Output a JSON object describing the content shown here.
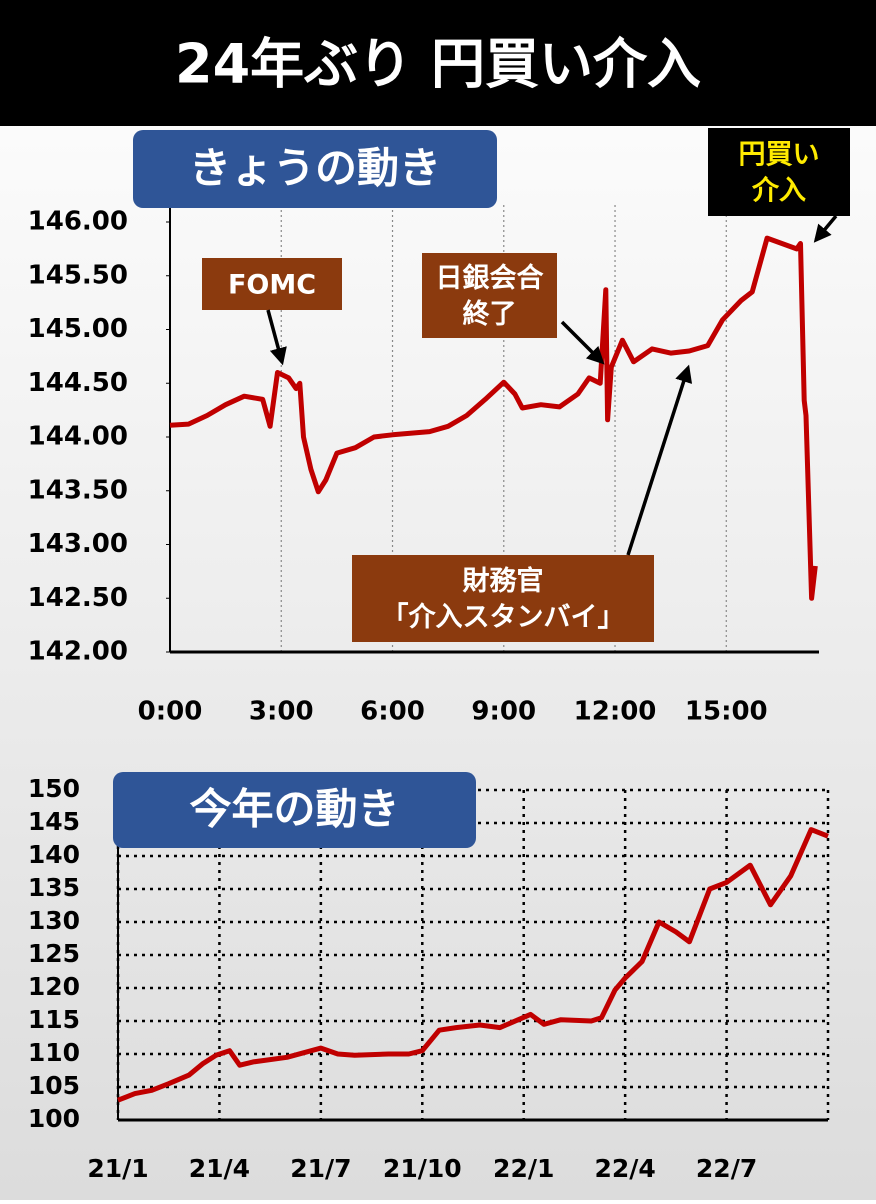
{
  "title": "24年ぶり 円買い介入",
  "chart_data": [
    {
      "type": "line",
      "title": "きょうの動き",
      "color": "#c00000",
      "grid": "x",
      "xlim": [
        0,
        17.5
      ],
      "xticks": [
        {
          "value": 0,
          "label": "0:00"
        },
        {
          "value": 3,
          "label": "3:00"
        },
        {
          "value": 6,
          "label": "6:00"
        },
        {
          "value": 9,
          "label": "9:00"
        },
        {
          "value": 12,
          "label": "12:00"
        },
        {
          "value": 15,
          "label": "15:00"
        }
      ],
      "ylim": [
        142,
        146
      ],
      "yticks": [
        {
          "value": 142,
          "label": "142.00"
        },
        {
          "value": 142.5,
          "label": "142.50"
        },
        {
          "value": 143,
          "label": "143.00"
        },
        {
          "value": 143.5,
          "label": "143.50"
        },
        {
          "value": 144,
          "label": "144.00"
        },
        {
          "value": 144.5,
          "label": "144.50"
        },
        {
          "value": 145,
          "label": "145.00"
        },
        {
          "value": 145.5,
          "label": "145.50"
        },
        {
          "value": 146,
          "label": "146.00"
        }
      ],
      "x": [
        0,
        0.5,
        1,
        1.5,
        2,
        2.5,
        2.7,
        2.9,
        3.2,
        3.4,
        3.5,
        3.6,
        3.8,
        4.0,
        4.2,
        4.5,
        5,
        5.5,
        6,
        7,
        7.5,
        8,
        8.5,
        9,
        9.3,
        9.5,
        10,
        10.5,
        11,
        11.3,
        11.6,
        11.75,
        11.8,
        11.9,
        12.2,
        12.5,
        13,
        13.5,
        14,
        14.5,
        14.9,
        15.4,
        15.7,
        16.1,
        16.5,
        16.9,
        17.0,
        17.1,
        17.15,
        17.3,
        17.4
      ],
      "values": [
        144.11,
        144.12,
        144.2,
        144.3,
        144.38,
        144.35,
        144.1,
        144.6,
        144.55,
        144.45,
        144.5,
        144.0,
        143.7,
        143.49,
        143.6,
        143.85,
        143.9,
        144.0,
        144.02,
        144.05,
        144.1,
        144.2,
        144.35,
        144.51,
        144.4,
        144.27,
        144.3,
        144.28,
        144.4,
        144.55,
        144.5,
        145.37,
        144.16,
        144.65,
        144.9,
        144.7,
        144.82,
        144.78,
        144.8,
        144.85,
        145.09,
        145.27,
        145.35,
        145.85,
        145.8,
        145.75,
        145.8,
        144.34,
        144.2,
        142.5,
        142.8
      ],
      "annotations": [
        {
          "lines": [
            "FOMC"
          ]
        },
        {
          "lines": [
            "日銀会合",
            "終了"
          ]
        },
        {
          "lines": [
            "財務官",
            "「介入スタンバイ」"
          ]
        },
        {
          "lines": [
            "円買い",
            "介入"
          ]
        }
      ]
    },
    {
      "type": "line",
      "title": "今年の動き",
      "color": "#c00000",
      "grid": "both",
      "xlim": [
        0,
        21
      ],
      "xticks": [
        {
          "value": 0,
          "label": "21/1"
        },
        {
          "value": 3,
          "label": "21/4"
        },
        {
          "value": 6,
          "label": "21/7"
        },
        {
          "value": 9,
          "label": "21/10"
        },
        {
          "value": 12,
          "label": "22/1"
        },
        {
          "value": 15,
          "label": "22/4"
        },
        {
          "value": 18,
          "label": "22/7"
        }
      ],
      "ylim": [
        100,
        150
      ],
      "yticks": [
        100,
        105,
        110,
        115,
        120,
        125,
        130,
        135,
        140,
        145,
        150
      ],
      "x": [
        0,
        0.5,
        1,
        1.5,
        2.1,
        2.5,
        2.9,
        3.3,
        3.6,
        4,
        5,
        6,
        6.5,
        7,
        8,
        8.6,
        9,
        9.5,
        10,
        10.7,
        11.3,
        12.2,
        12.6,
        13.1,
        14,
        14.3,
        14.7,
        15,
        15.5,
        16,
        16.5,
        16.9,
        17.5,
        18,
        18.7,
        19.3,
        19.9,
        20.5,
        21
      ],
      "values": [
        103,
        104,
        104.5,
        105.5,
        106.8,
        108.5,
        109.8,
        110.5,
        108.3,
        108.8,
        109.5,
        110.9,
        110,
        109.8,
        110,
        110,
        110.5,
        113.6,
        114,
        114.4,
        114,
        116,
        114.5,
        115.2,
        115,
        115.5,
        119.7,
        121.5,
        124,
        130,
        128.5,
        127,
        135,
        136,
        138.6,
        132.6,
        137,
        144,
        143
      ]
    }
  ]
}
